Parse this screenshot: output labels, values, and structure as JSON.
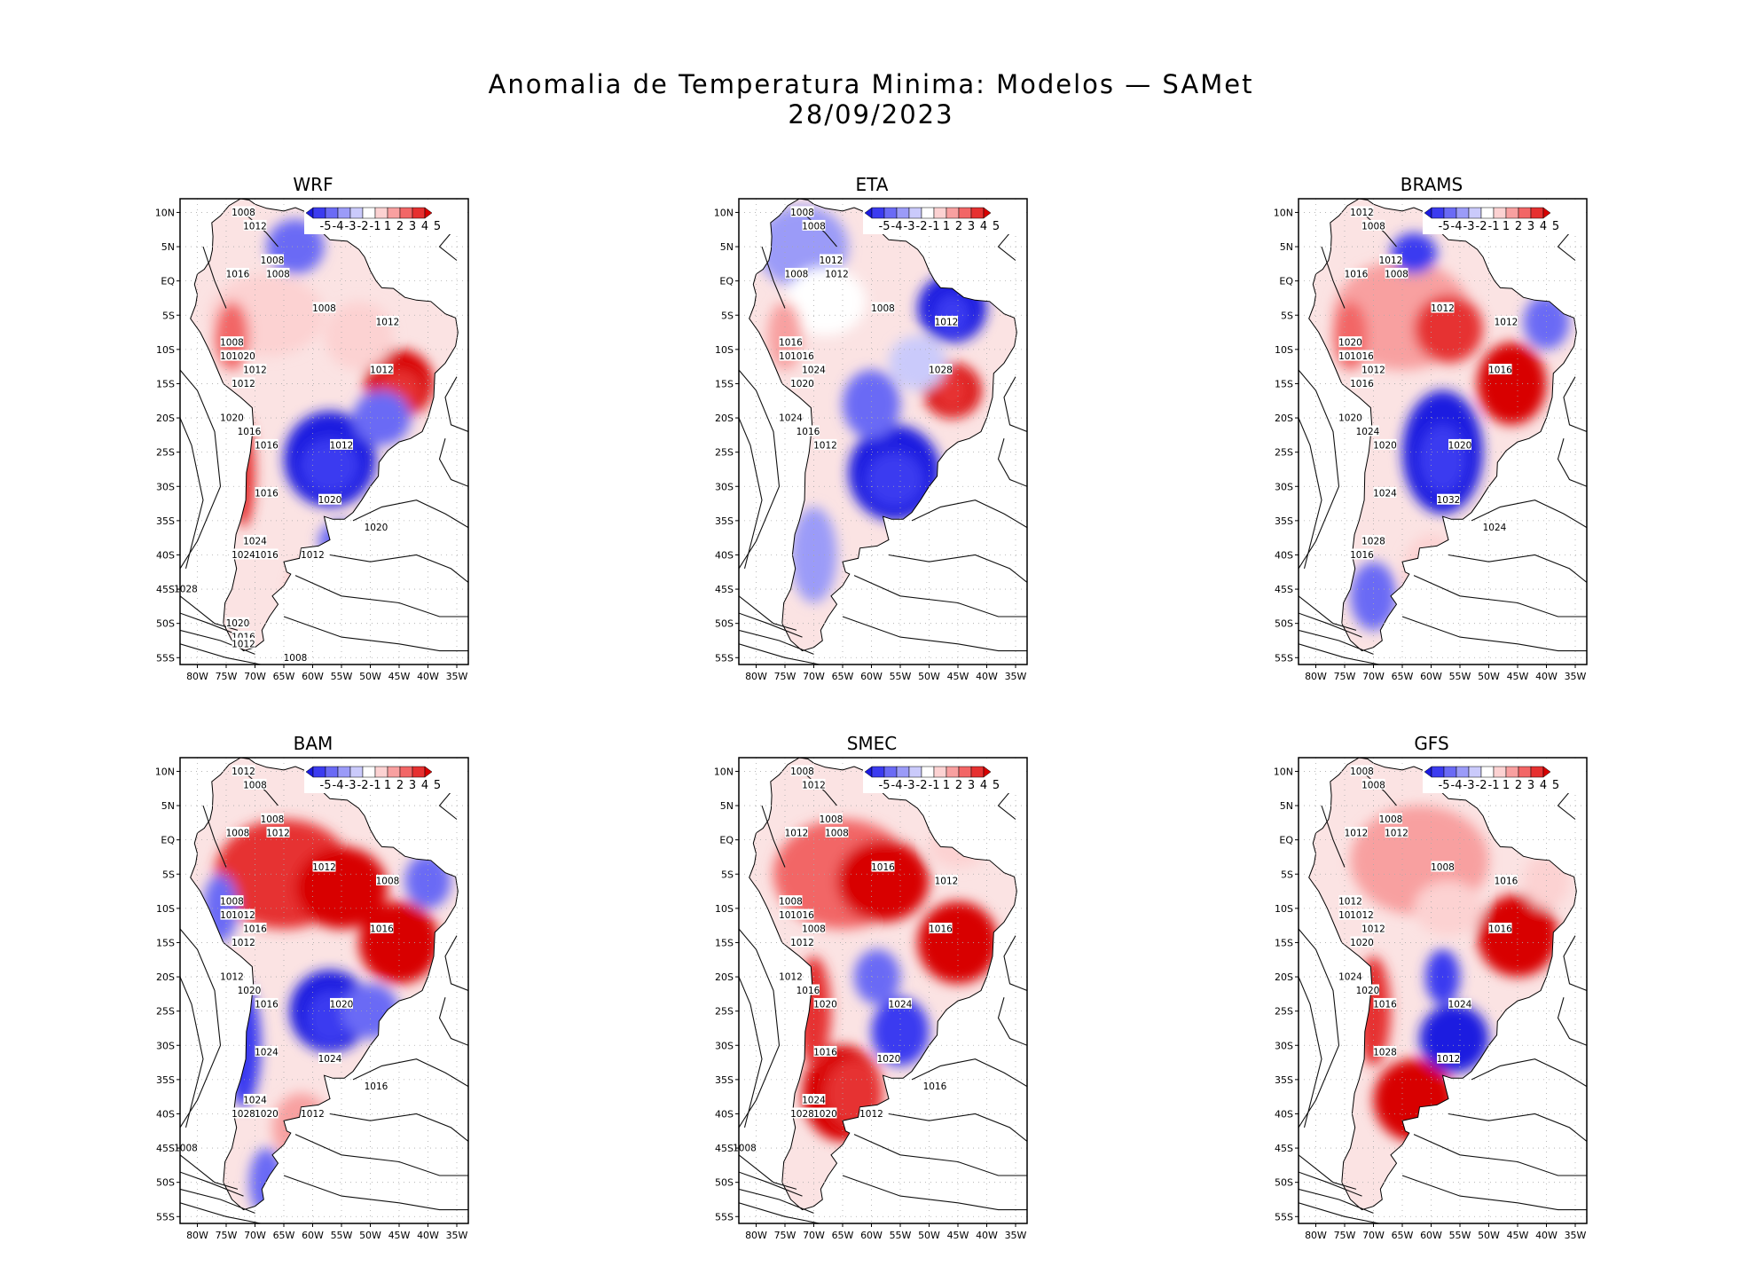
{
  "title": {
    "line1": "Anomalia de Temperatura Minima: Modelos — SAMet",
    "line2": "28/09/2023"
  },
  "axes": {
    "lat_labels": [
      "10N",
      "5N",
      "EQ",
      "5S",
      "10S",
      "15S",
      "20S",
      "25S",
      "30S",
      "35S",
      "40S",
      "45S",
      "50S",
      "55S"
    ],
    "lon_labels": [
      "80W",
      "75W",
      "70W",
      "65W",
      "60W",
      "55W",
      "50W",
      "45W",
      "40W",
      "35W"
    ]
  },
  "colorbar": {
    "labels": [
      "-5",
      "-4",
      "-3",
      "-2",
      "-1",
      "1",
      "2",
      "3",
      "4",
      "5"
    ],
    "colors": [
      "#1a1ae0",
      "#3b3bf0",
      "#6a6af5",
      "#9b9bf8",
      "#cacafb",
      "#ffffff",
      "#fcd2d2",
      "#f8a0a0",
      "#f26666",
      "#e63030",
      "#d80000"
    ]
  },
  "chart_data": [
    {
      "type": "heatmap",
      "title": "WRF",
      "variable": "anomalia de temperatura minima (°C) + isobaras (hPa)",
      "lon_range": [
        -83,
        -33
      ],
      "lat_range": [
        -56,
        12
      ],
      "isobar_labels": [
        "1008",
        "1012",
        "1008",
        "1016",
        "1008",
        "1008",
        "1012",
        "1008",
        "1016",
        "1020",
        "1012",
        "1012",
        "1012",
        "1020",
        "1016",
        "1016",
        "1012",
        "1016",
        "1020",
        "1024",
        "1020",
        "1024",
        "1016",
        "1012",
        "1028",
        "1020",
        "1016",
        "1012",
        "1008"
      ]
    },
    {
      "type": "heatmap",
      "title": "ETA",
      "variable": "anomalia de temperatura minima (°C) + isobaras (hPa)",
      "lon_range": [
        -83,
        -33
      ],
      "lat_range": [
        -56,
        12
      ],
      "isobar_labels": [
        "1008",
        "1008",
        "1012",
        "1008",
        "1012",
        "1008",
        "1012",
        "1016",
        "1020",
        "1016",
        "1024",
        "1020",
        "1028",
        "1024",
        "1016",
        "1012"
      ]
    },
    {
      "type": "heatmap",
      "title": "BRAMS",
      "variable": "anomalia de temperatura minima (°C) + isobaras (hPa)",
      "lon_range": [
        -83,
        -33
      ],
      "lat_range": [
        -56,
        12
      ],
      "isobar_labels": [
        "1012",
        "1008",
        "1012",
        "1016",
        "1008",
        "1012",
        "1012",
        "1020",
        "1016",
        "1016",
        "1012",
        "1016",
        "1016",
        "1020",
        "1024",
        "1020",
        "1020",
        "1024",
        "1032",
        "1028",
        "1024",
        "1016"
      ]
    },
    {
      "type": "heatmap",
      "title": "BAM",
      "variable": "anomalia de temperatura minima (°C) + isobaras (hPa)",
      "lon_range": [
        -83,
        -33
      ],
      "lat_range": [
        -56,
        12
      ],
      "isobar_labels": [
        "1012",
        "1008",
        "1008",
        "1008",
        "1012",
        "1012",
        "1008",
        "1008",
        "1016",
        "1012",
        "1016",
        "1012",
        "1016",
        "1012",
        "1020",
        "1016",
        "1020",
        "1024",
        "1024",
        "1024",
        "1016",
        "1028",
        "1020",
        "1012",
        "1008"
      ]
    },
    {
      "type": "heatmap",
      "title": "SMEC",
      "variable": "anomalia de temperatura minima (°C) + isobaras (hPa)",
      "lon_range": [
        -83,
        -33
      ],
      "lat_range": [
        -56,
        12
      ],
      "isobar_labels": [
        "1008",
        "1012",
        "1008",
        "1012",
        "1008",
        "1016",
        "1012",
        "1008",
        "1012",
        "1016",
        "1008",
        "1012",
        "1016",
        "1012",
        "1016",
        "1020",
        "1024",
        "1016",
        "1020",
        "1024",
        "1016",
        "1028",
        "1020",
        "1012",
        "1008"
      ]
    },
    {
      "type": "heatmap",
      "title": "GFS",
      "variable": "anomalia de temperatura minima (°C) + isobaras (hPa)",
      "lon_range": [
        -83,
        -33
      ],
      "lat_range": [
        -56,
        12
      ],
      "isobar_labels": [
        "1008",
        "1008",
        "1008",
        "1012",
        "1012",
        "1008",
        "1016",
        "1012",
        "1016",
        "1012",
        "1012",
        "1020",
        "1016",
        "1024",
        "1020",
        "1016",
        "1024",
        "1028",
        "1012"
      ]
    }
  ]
}
